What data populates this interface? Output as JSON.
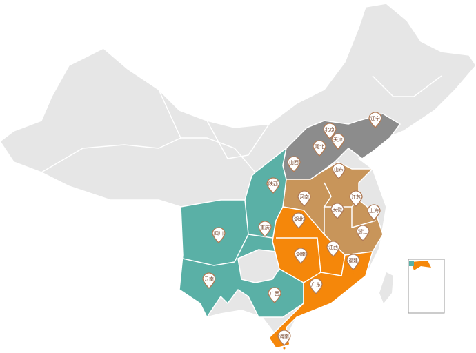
{
  "map": {
    "pins": [
      {
        "label": "辽宁",
        "color": "#8c8c8c"
      },
      {
        "label": "北京",
        "color": "#8c8c8c"
      },
      {
        "label": "天津",
        "color": "#8c8c8c"
      },
      {
        "label": "河北",
        "color": "#8c8c8c"
      },
      {
        "label": "山西",
        "color": "#8c8c8c"
      },
      {
        "label": "山东",
        "color": "#c8955a"
      },
      {
        "label": "陕西",
        "color": "#5ab0a6"
      },
      {
        "label": "河南",
        "color": "#c8955a"
      },
      {
        "label": "江苏",
        "color": "#c8955a"
      },
      {
        "label": "安徽",
        "color": "#c8955a"
      },
      {
        "label": "上海",
        "color": "#c8955a"
      },
      {
        "label": "湖北",
        "color": "#f5870a"
      },
      {
        "label": "浙江",
        "color": "#c8955a"
      },
      {
        "label": "四川",
        "color": "#5ab0a6"
      },
      {
        "label": "重庆",
        "color": "#5ab0a6"
      },
      {
        "label": "湖南",
        "color": "#f5870a"
      },
      {
        "label": "江西",
        "color": "#f5870a"
      },
      {
        "label": "福建",
        "color": "#f5870a"
      },
      {
        "label": "云南",
        "color": "#5ab0a6"
      },
      {
        "label": "广西",
        "color": "#5ab0a6"
      },
      {
        "label": "广东",
        "color": "#f5870a"
      },
      {
        "label": "海南",
        "color": "#f5870a"
      }
    ]
  }
}
